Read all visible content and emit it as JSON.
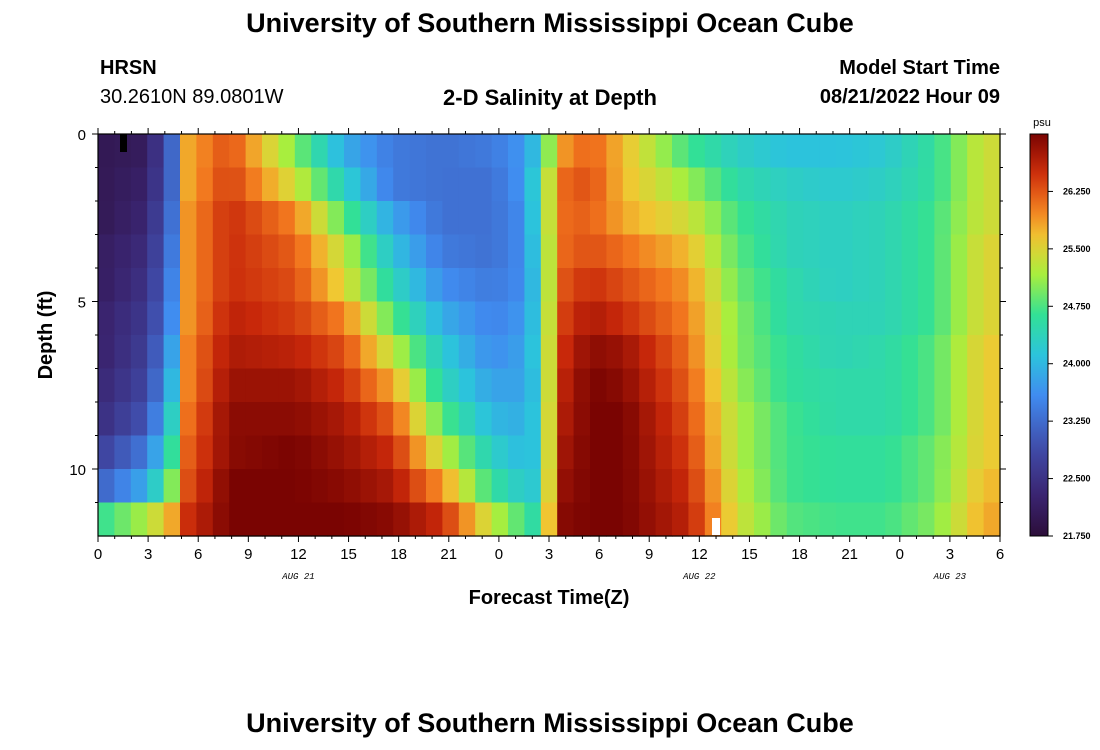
{
  "header": {
    "title": "University of Southern Mississippi Ocean Cube",
    "station": "HRSN",
    "coords": "30.2610N  89.0801W",
    "subtitle": "2-D Salinity at Depth",
    "start_label": "Model Start Time",
    "start_value": "08/21/2022 Hour 09"
  },
  "footer": {
    "title": "University of Southern Mississippi Ocean Cube"
  },
  "chart_data": {
    "type": "heatmap",
    "title": "2-D Salinity at Depth",
    "xlabel": "Forecast Time(Z)",
    "ylabel": "Depth (ft)",
    "x_range_hours": [
      0,
      54
    ],
    "x_ticks": [
      "0",
      "3",
      "6",
      "9",
      "12",
      "15",
      "18",
      "21",
      "0",
      "3",
      "6",
      "9",
      "12",
      "15",
      "18",
      "21",
      "0",
      "3",
      "6"
    ],
    "date_labels": [
      {
        "label": "AUG 21",
        "hour": 12
      },
      {
        "label": "AUG 22",
        "hour": 36
      },
      {
        "label": "AUG 23",
        "hour": 51
      }
    ],
    "y_range_ft": [
      0,
      12
    ],
    "y_ticks": [
      0,
      5,
      10
    ],
    "colorbar": {
      "unit": "psu",
      "min": 21.75,
      "max": 27.0,
      "ticks": [
        "21.750",
        "22.500",
        "23.250",
        "24.000",
        "24.750",
        "25.500",
        "26.250"
      ]
    },
    "depth_levels_ft": [
      0.5,
      1.5,
      2.5,
      3.5,
      4.5,
      5.5,
      6.5,
      7.5,
      8.5,
      9.5,
      10.5,
      11.5
    ],
    "time_keyframes_hours": [
      0,
      3,
      4.5,
      5.5,
      8,
      12,
      15,
      18,
      21,
      24,
      26,
      27,
      28,
      30,
      32,
      36,
      39,
      42,
      45,
      48,
      51,
      54
    ],
    "salinity_keyframes": [
      [
        22.0,
        22.1,
        23.2,
        25.8,
        26.3,
        25.0,
        23.9,
        23.4,
        23.3,
        23.4,
        23.7,
        24.3,
        25.8,
        26.2,
        25.7,
        24.7,
        24.3,
        24.1,
        24.1,
        24.2,
        24.6,
        25.4
      ],
      [
        22.0,
        22.2,
        23.2,
        25.8,
        26.4,
        25.4,
        24.3,
        23.4,
        23.3,
        23.3,
        23.7,
        24.6,
        26.1,
        26.3,
        25.7,
        25.1,
        24.5,
        24.3,
        24.2,
        24.3,
        24.6,
        25.4
      ],
      [
        22.0,
        22.3,
        23.3,
        25.9,
        26.5,
        26.0,
        24.8,
        23.8,
        23.3,
        23.3,
        23.6,
        24.6,
        26.1,
        26.2,
        25.8,
        25.4,
        24.7,
        24.4,
        24.3,
        24.4,
        24.7,
        25.4
      ],
      [
        22.1,
        22.4,
        23.4,
        25.9,
        26.5,
        26.2,
        25.3,
        24.1,
        23.4,
        23.3,
        23.6,
        24.5,
        26.1,
        26.3,
        26.1,
        25.7,
        24.8,
        24.4,
        24.3,
        24.4,
        24.7,
        25.5
      ],
      [
        22.1,
        22.5,
        23.5,
        25.9,
        26.5,
        26.3,
        25.5,
        24.4,
        23.6,
        23.4,
        23.6,
        24.4,
        26.2,
        26.5,
        26.3,
        25.9,
        24.9,
        24.5,
        24.3,
        24.4,
        24.7,
        25.5
      ],
      [
        22.2,
        22.6,
        23.6,
        25.9,
        26.6,
        26.4,
        26.0,
        24.8,
        23.9,
        23.5,
        23.7,
        24.4,
        26.3,
        26.7,
        26.5,
        26.0,
        25.0,
        24.5,
        24.4,
        24.4,
        24.7,
        25.5
      ],
      [
        22.2,
        22.7,
        23.8,
        26.0,
        26.7,
        26.6,
        26.3,
        25.3,
        24.2,
        23.6,
        23.8,
        24.4,
        26.4,
        26.9,
        26.8,
        26.1,
        25.0,
        24.6,
        24.4,
        24.5,
        24.8,
        25.6
      ],
      [
        22.3,
        22.8,
        24.0,
        26.0,
        26.8,
        26.8,
        26.5,
        25.8,
        24.4,
        23.8,
        23.8,
        24.3,
        26.5,
        27.0,
        26.9,
        26.2,
        25.1,
        24.6,
        24.5,
        24.5,
        24.8,
        25.6
      ],
      [
        22.4,
        23.0,
        24.3,
        26.1,
        26.9,
        26.9,
        26.7,
        26.2,
        24.8,
        24.0,
        23.9,
        24.3,
        26.6,
        27.0,
        27.0,
        26.3,
        25.2,
        24.7,
        24.5,
        24.5,
        24.8,
        25.6
      ],
      [
        22.7,
        23.4,
        24.6,
        26.2,
        26.9,
        27.0,
        26.8,
        26.5,
        25.3,
        24.3,
        24.0,
        24.2,
        26.7,
        27.0,
        27.0,
        26.4,
        25.2,
        24.7,
        24.6,
        24.6,
        24.9,
        25.6
      ],
      [
        23.1,
        23.9,
        25.0,
        26.3,
        27.0,
        27.0,
        26.9,
        26.7,
        25.9,
        24.6,
        24.2,
        24.2,
        26.8,
        27.0,
        27.0,
        26.5,
        25.3,
        24.7,
        24.6,
        24.6,
        24.9,
        25.7
      ],
      [
        24.6,
        25.2,
        25.8,
        26.5,
        27.0,
        27.0,
        27.0,
        26.9,
        26.5,
        25.3,
        24.7,
        24.4,
        26.9,
        27.0,
        27.0,
        26.6,
        25.4,
        24.8,
        24.7,
        24.7,
        25.0,
        25.8
      ]
    ]
  }
}
